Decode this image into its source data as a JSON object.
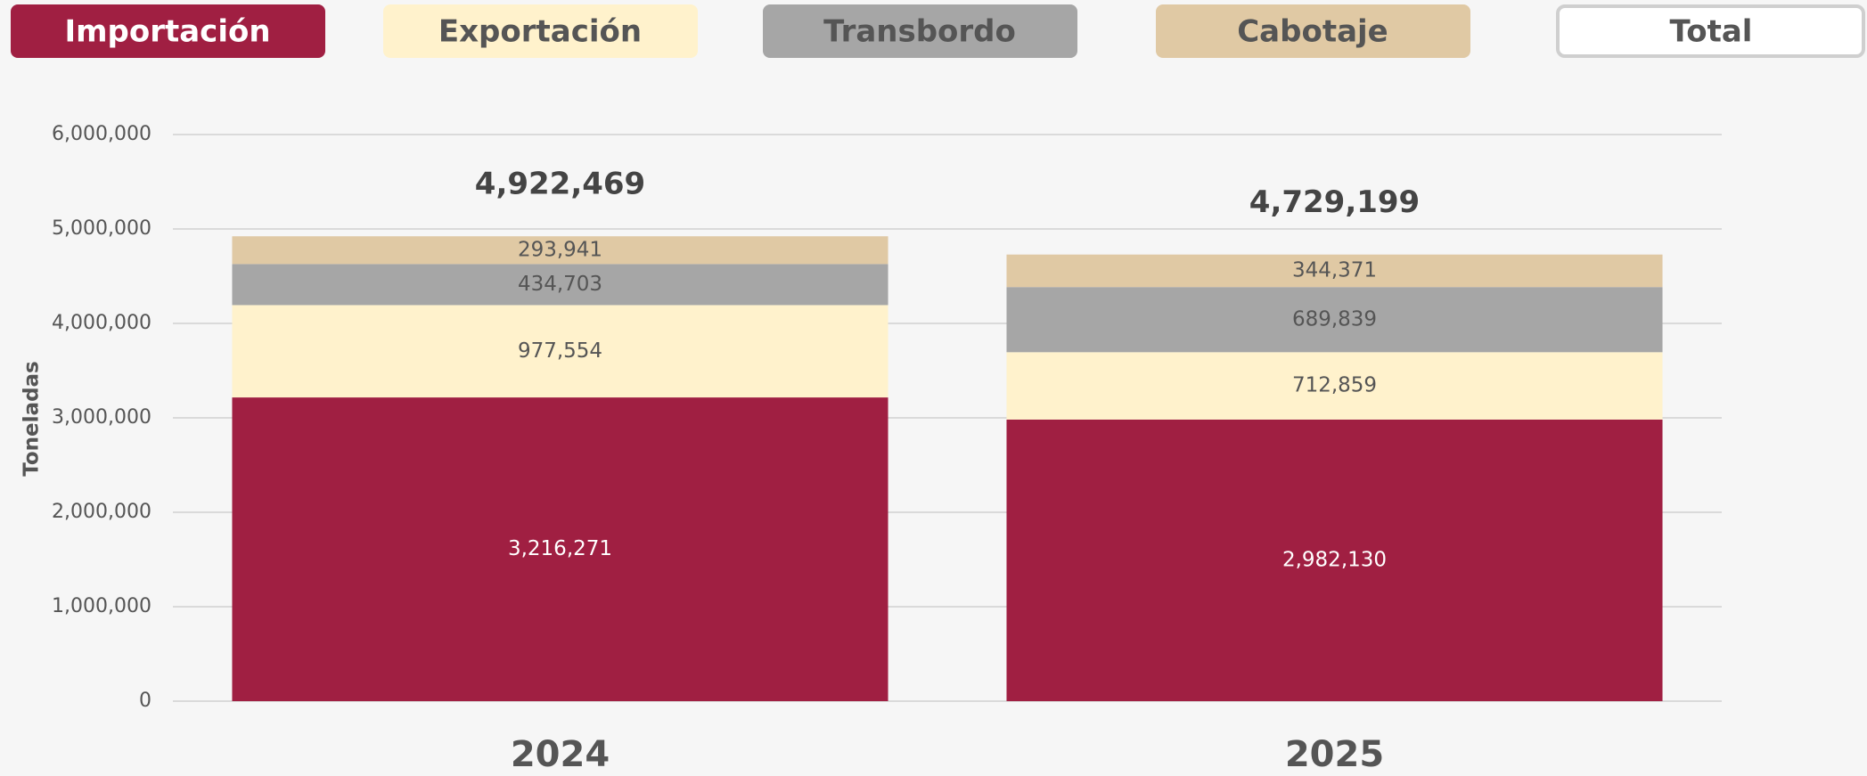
{
  "chart_data": {
    "type": "stacked_bar",
    "y_label": "Toneladas",
    "categories": [
      "2024",
      "2025"
    ],
    "series": [
      {
        "name": "Importación",
        "color": "#a01f42",
        "label_color": "#ffffff",
        "values": [
          3216271,
          2982130
        ],
        "value_labels": [
          "3,216,271",
          "2,982,130"
        ]
      },
      {
        "name": "Exportación",
        "color": "#fff2cc",
        "label_color": "#555555",
        "values": [
          977554,
          712859
        ],
        "value_labels": [
          "977,554",
          "712,859"
        ]
      },
      {
        "name": "Transbordo",
        "color": "#a6a6a6",
        "label_color": "#555555",
        "values": [
          434703,
          689839
        ],
        "value_labels": [
          "434,703",
          "689,839"
        ]
      },
      {
        "name": "Cabotaje",
        "color": "#e0c9a4",
        "label_color": "#555555",
        "values": [
          293941,
          344371
        ],
        "value_labels": [
          "293,941",
          "344,371"
        ]
      }
    ],
    "total_name": "Total",
    "totals": [
      4922469,
      4729199
    ],
    "total_labels": [
      "4,922,469",
      "4,729,199"
    ],
    "ylim": [
      0,
      6000000
    ],
    "yticks": [
      0,
      {
        "value": 1000000,
        "label": "1,000,000"
      },
      {
        "value": 2000000,
        "label": "2,000,000"
      },
      {
        "value": 3000000,
        "label": "3,000,000"
      },
      {
        "value": 4000000,
        "label": "4,000,000"
      },
      {
        "value": 5000000,
        "label": "5,000,000"
      },
      {
        "value": 6000000,
        "label": "6,000,000"
      }
    ],
    "grid": true
  }
}
